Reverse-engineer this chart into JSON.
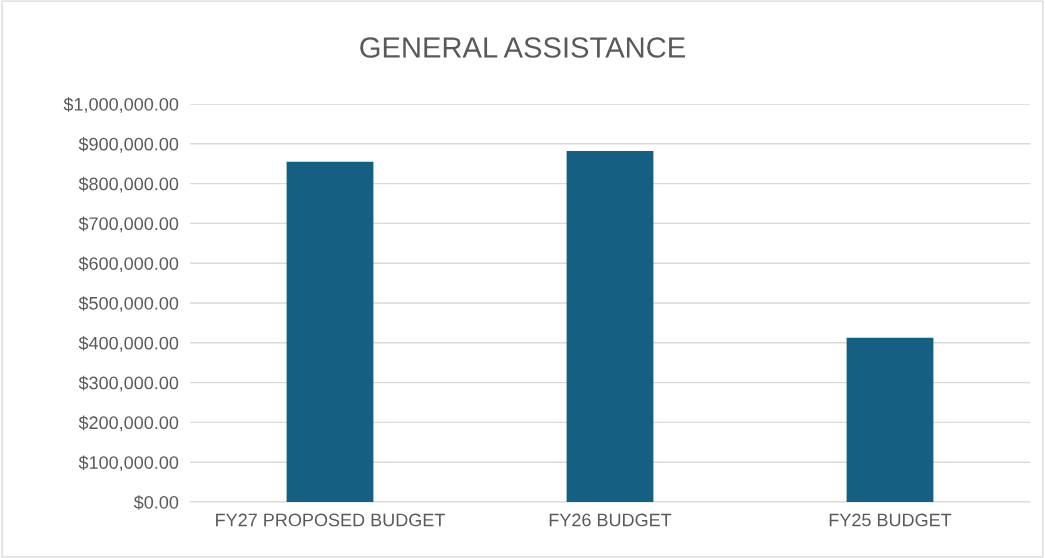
{
  "chart_data": {
    "type": "bar",
    "title": "GENERAL ASSISTANCE",
    "categories": [
      "FY27 PROPOSED BUDGET",
      "FY26 BUDGET",
      "FY25 BUDGET"
    ],
    "values": [
      855000,
      882000,
      413000
    ],
    "color": "#156082",
    "ylim": [
      0,
      1000000
    ],
    "yticks": [
      {
        "value": 0,
        "label": "$0.00"
      },
      {
        "value": 100000,
        "label": "$100,000.00"
      },
      {
        "value": 200000,
        "label": "$200,000.00"
      },
      {
        "value": 300000,
        "label": "$300,000.00"
      },
      {
        "value": 400000,
        "label": "$400,000.00"
      },
      {
        "value": 500000,
        "label": "$500,000.00"
      },
      {
        "value": 600000,
        "label": "$600,000.00"
      },
      {
        "value": 700000,
        "label": "$700,000.00"
      },
      {
        "value": 800000,
        "label": "$800,000.00"
      },
      {
        "value": 900000,
        "label": "$900,000.00"
      },
      {
        "value": 1000000,
        "label": "$1,000,000.00"
      }
    ],
    "grid": "y",
    "legend": false
  }
}
